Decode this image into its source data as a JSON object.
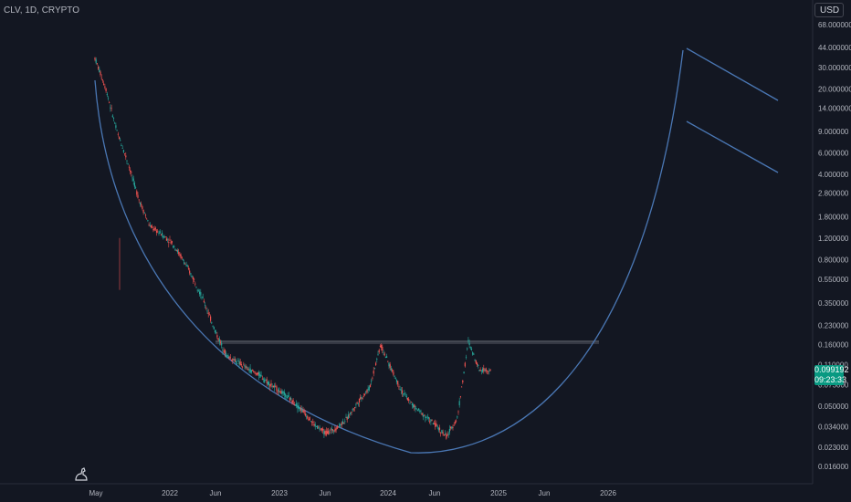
{
  "header": {
    "symbol_text": "CLV, 1D, CRYPTO"
  },
  "currency_button": {
    "label": "USD"
  },
  "price_badge": {
    "price": "0.099192",
    "countdown": "09:23:33"
  },
  "chart_data": {
    "type": "line",
    "y_scale": "log",
    "ylim": [
      0.013,
      90
    ],
    "x_tick_labels": [
      "May",
      "2022",
      "Jun",
      "2023",
      "Jun",
      "2024",
      "Jun",
      "2025",
      "Jun",
      "2026"
    ],
    "y_tick_labels": [
      "68.000000",
      "44.000000",
      "30.000000",
      "20.000000",
      "14.000000",
      "9.000000",
      "6.000000",
      "4.000000",
      "2.800000",
      "1.800000",
      "1.200000",
      "0.800000",
      "0.550000",
      "0.350000",
      "0.230000",
      "0.160000",
      "0.110000",
      "0.075000",
      "0.050000",
      "0.034000",
      "0.023000",
      "0.016000"
    ],
    "y_tick_values": [
      68,
      44,
      30,
      20,
      14,
      9,
      6,
      4,
      2.8,
      1.8,
      1.2,
      0.8,
      0.55,
      0.35,
      0.23,
      0.16,
      0.11,
      0.075,
      0.05,
      0.034,
      0.023,
      0.016
    ],
    "series": [
      {
        "values_approx": [
          36,
          20,
          9,
          5,
          2.5,
          1.5,
          1.3,
          1.1,
          0.8,
          0.55,
          0.35,
          0.2,
          0.13,
          0.115,
          0.1,
          0.09,
          0.075,
          0.065,
          0.055,
          0.045,
          0.035,
          0.03,
          0.033,
          0.04,
          0.055,
          0.07,
          0.16,
          0.1,
          0.065,
          0.05,
          0.042,
          0.035,
          0.028,
          0.04,
          0.17,
          0.1,
          0.099
        ]
      }
    ],
    "resistance_level": 0.17,
    "colors": {
      "up": "#26a69a",
      "down": "#ef5350",
      "curve": "#4a77b4",
      "resistance": "#9598a1"
    }
  }
}
